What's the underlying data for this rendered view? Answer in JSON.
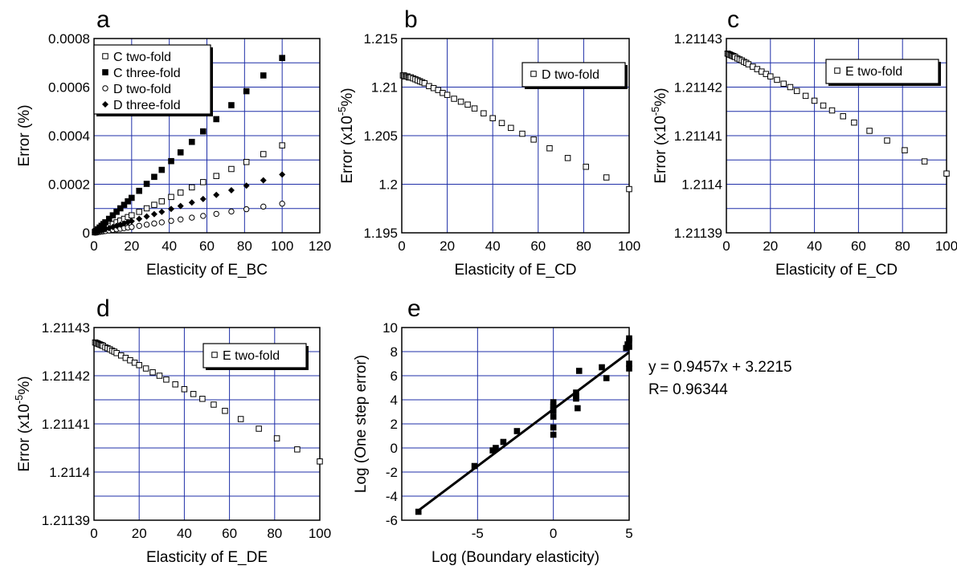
{
  "chart_data": [
    {
      "panel_id": "a",
      "type": "scatter",
      "panel_letter": "a",
      "xlabel": "Elasticity of E_BC",
      "ylabel": "Error (%)",
      "xlim": [
        0,
        120
      ],
      "ylim": [
        0,
        0.0008
      ],
      "x_ticks": [
        "0",
        "20",
        "40",
        "60",
        "80",
        "100",
        "120"
      ],
      "y_ticks": [
        "0",
        "0.0002",
        "0.0004",
        "0.0006",
        "0.0008"
      ],
      "grid": "on",
      "legend_position": "top-left",
      "series": [
        {
          "name": "C two-fold",
          "marker": "open-square",
          "x": [
            0.5,
            1,
            2,
            3,
            4,
            5,
            6,
            8,
            10,
            12,
            14,
            16,
            18,
            20,
            24,
            28,
            32,
            36,
            41,
            46,
            52,
            58,
            65,
            73,
            81,
            90,
            100
          ],
          "y": [
            1.8e-06,
            3.6e-06,
            7.2e-06,
            1.08e-05,
            1.44e-05,
            1.8e-05,
            2.16e-05,
            2.88e-05,
            3.6e-05,
            4.32e-05,
            5.04e-05,
            5.76e-05,
            6.48e-05,
            7.2e-05,
            8.64e-05,
            0.0001008,
            0.0001152,
            0.0001296,
            0.0001476,
            0.0001656,
            0.0001872,
            0.0002088,
            0.000234,
            0.0002628,
            0.0002916,
            0.000324,
            0.00036
          ]
        },
        {
          "name": "C three-fold",
          "marker": "filled-square",
          "x": [
            0.5,
            1,
            2,
            3,
            4,
            5,
            6,
            8,
            10,
            12,
            14,
            16,
            18,
            20,
            24,
            28,
            32,
            36,
            41,
            46,
            52,
            58,
            65,
            73,
            81,
            90,
            100
          ],
          "y": [
            3.6e-06,
            7.2e-06,
            1.44e-05,
            2.16e-05,
            2.88e-05,
            3.6e-05,
            4.32e-05,
            5.76e-05,
            7.2e-05,
            8.64e-05,
            0.0001008,
            0.0001152,
            0.0001296,
            0.000144,
            0.0001728,
            0.0002016,
            0.0002304,
            0.0002592,
            0.0002952,
            0.0003312,
            0.0003744,
            0.0004176,
            0.000468,
            0.0005256,
            0.0005832,
            0.000648,
            0.00072
          ]
        },
        {
          "name": "D two-fold",
          "marker": "open-circle",
          "x": [
            0.5,
            1,
            2,
            3,
            4,
            5,
            6,
            8,
            10,
            12,
            14,
            16,
            18,
            20,
            24,
            28,
            32,
            36,
            41,
            46,
            52,
            58,
            65,
            73,
            81,
            90,
            100
          ],
          "y": [
            6e-07,
            1.2e-06,
            2.4e-06,
            3.6e-06,
            4.8e-06,
            6e-06,
            7.2e-06,
            9.6e-06,
            1.2e-05,
            1.44e-05,
            1.68e-05,
            1.92e-05,
            2.16e-05,
            2.4e-05,
            2.88e-05,
            3.36e-05,
            3.84e-05,
            4.32e-05,
            4.92e-05,
            5.52e-05,
            6.24e-05,
            6.96e-05,
            7.8e-05,
            8.76e-05,
            9.72e-05,
            0.000108,
            0.00012
          ]
        },
        {
          "name": "D three-fold",
          "marker": "filled-diamond",
          "x": [
            0.5,
            1,
            2,
            3,
            4,
            5,
            6,
            8,
            10,
            12,
            14,
            16,
            18,
            20,
            24,
            28,
            32,
            36,
            41,
            46,
            52,
            58,
            65,
            73,
            81,
            90,
            100
          ],
          "y": [
            1.2e-06,
            2.4e-06,
            4.8e-06,
            7.2e-06,
            9.6e-06,
            1.2e-05,
            1.44e-05,
            1.92e-05,
            2.4e-05,
            2.88e-05,
            3.36e-05,
            3.84e-05,
            4.32e-05,
            4.8e-05,
            5.76e-05,
            6.72e-05,
            7.68e-05,
            8.64e-05,
            9.84e-05,
            0.0001104,
            0.0001248,
            0.0001392,
            0.000156,
            0.0001752,
            0.0001944,
            0.000216,
            0.00024
          ]
        }
      ]
    },
    {
      "panel_id": "b",
      "type": "scatter",
      "panel_letter": "b",
      "xlabel": "Elasticity of E_CD",
      "ylabel_main": "Error (x10",
      "ylabel_sup": "-5",
      "ylabel_end": "%)",
      "xlim": [
        0,
        100
      ],
      "ylim": [
        1.195,
        1.215
      ],
      "x_ticks": [
        "0",
        "20",
        "40",
        "60",
        "80",
        "100"
      ],
      "y_ticks": [
        "1.195",
        "1.2",
        "1.205",
        "1.21",
        "1.215"
      ],
      "grid": "on",
      "legend_position": "top-right",
      "series": [
        {
          "name": "D two-fold",
          "marker": "open-square",
          "x": [
            0.5,
            1,
            1.5,
            2,
            2.5,
            3,
            3.5,
            4,
            5,
            6,
            7,
            8,
            9,
            10,
            12,
            14,
            16,
            18,
            20,
            23,
            26,
            29,
            32,
            36,
            40,
            44,
            48,
            53,
            58,
            65,
            73,
            81,
            90,
            100
          ],
          "y": [
            1.2112,
            1.2112,
            1.2111,
            1.2111,
            1.2111,
            1.211,
            1.211,
            1.211,
            1.2109,
            1.2108,
            1.2107,
            1.2106,
            1.2105,
            1.2104,
            1.2101,
            1.2099,
            1.2097,
            1.2094,
            1.2092,
            1.2088,
            1.2085,
            1.2082,
            1.2078,
            1.2073,
            1.2068,
            1.2063,
            1.2058,
            1.2052,
            1.2046,
            1.2037,
            1.2027,
            1.2018,
            1.2007,
            1.1995
          ]
        }
      ]
    },
    {
      "panel_id": "c",
      "type": "scatter",
      "panel_letter": "c",
      "xlabel": "Elasticity of E_CD",
      "ylabel_main": "Error (x10",
      "ylabel_sup": "-5",
      "ylabel_end": "%)",
      "xlim": [
        0,
        100
      ],
      "ylim": [
        1.21139,
        1.21143
      ],
      "x_ticks": [
        "0",
        "20",
        "40",
        "60",
        "80",
        "100"
      ],
      "y_ticks": [
        "1.21139",
        "1.2114",
        "1.21141",
        "1.21142",
        "1.21143"
      ],
      "grid": "on",
      "legend_position": "top-right",
      "series": [
        {
          "name": "E two-fold",
          "marker": "open-square",
          "x": [
            0.5,
            1,
            1.5,
            2,
            2.5,
            3,
            3.5,
            4,
            5,
            6,
            7,
            8,
            9,
            10,
            12,
            14,
            16,
            18,
            20,
            23,
            26,
            29,
            32,
            36,
            40,
            44,
            48,
            53,
            58,
            65,
            73,
            81,
            90,
            100
          ],
          "y": [
            1.2114269,
            1.2114268,
            1.2114267,
            1.2114266,
            1.2114265,
            1.2114264,
            1.2114263,
            1.2114262,
            1.2114259,
            1.2114257,
            1.2114255,
            1.2114252,
            1.211425,
            1.2114247,
            1.2114242,
            1.2114237,
            1.2114232,
            1.2114227,
            1.2114222,
            1.2114215,
            1.2114207,
            1.21142,
            1.2114192,
            1.2114182,
            1.2114172,
            1.2114162,
            1.2114152,
            1.211414,
            1.2114127,
            1.211411,
            1.211409,
            1.211407,
            1.2114047,
            1.2114022
          ]
        }
      ]
    },
    {
      "panel_id": "d",
      "type": "scatter",
      "panel_letter": "d",
      "xlabel": "Elasticity of E_DE",
      "ylabel_main": "Error (x10",
      "ylabel_sup": "-5",
      "ylabel_end": "%)",
      "xlim": [
        0,
        100
      ],
      "ylim": [
        1.21139,
        1.21143
      ],
      "x_ticks": [
        "0",
        "20",
        "40",
        "60",
        "80",
        "100"
      ],
      "y_ticks": [
        "1.21139",
        "1.2114",
        "1.21141",
        "1.21142",
        "1.21143"
      ],
      "grid": "on",
      "legend_position": "top-right",
      "series": [
        {
          "name": "E two-fold",
          "marker": "open-square",
          "x": [
            0.5,
            1,
            1.5,
            2,
            2.5,
            3,
            3.5,
            4,
            5,
            6,
            7,
            8,
            9,
            10,
            12,
            14,
            16,
            18,
            20,
            23,
            26,
            29,
            32,
            36,
            40,
            44,
            48,
            53,
            58,
            65,
            73,
            81,
            90,
            100
          ],
          "y": [
            1.2114269,
            1.2114268,
            1.2114267,
            1.2114266,
            1.2114265,
            1.2114264,
            1.2114263,
            1.2114262,
            1.2114259,
            1.2114257,
            1.2114255,
            1.2114252,
            1.211425,
            1.2114247,
            1.2114242,
            1.2114237,
            1.2114232,
            1.2114227,
            1.2114222,
            1.2114215,
            1.2114207,
            1.21142,
            1.2114192,
            1.2114182,
            1.2114172,
            1.2114162,
            1.2114152,
            1.211414,
            1.2114127,
            1.211411,
            1.211409,
            1.211407,
            1.2114047,
            1.2114022
          ]
        }
      ]
    },
    {
      "panel_id": "e",
      "type": "scatter",
      "panel_letter": "e",
      "xlabel": "Log (Boundary elasticity)",
      "ylabel": "Log (One step error)",
      "xlim": [
        -10,
        5
      ],
      "ylim": [
        -6,
        10
      ],
      "x_ticks": [
        "-5",
        "0",
        "5"
      ],
      "x_tick_values": [
        -5,
        0,
        5
      ],
      "y_ticks": [
        "-6",
        "-4",
        "-2",
        "0",
        "2",
        "4",
        "6",
        "8",
        "10"
      ],
      "grid": "on",
      "fit_line": {
        "slope": 0.9457,
        "intercept": 3.2215,
        "x_range": [
          -9,
          5
        ]
      },
      "annotation": [
        "y = 0.9457x + 3.2215",
        "R= 0.96344"
      ],
      "series": [
        {
          "marker": "filled-square",
          "x": [
            -8.9,
            -5.2,
            -4.0,
            -3.8,
            -3.3,
            -2.4,
            0,
            0,
            0,
            0,
            0,
            0,
            0,
            0,
            1.5,
            1.5,
            1.5,
            1.6,
            1.7,
            3.2,
            3.5,
            4.8,
            4.9,
            5,
            5,
            5,
            5,
            5
          ],
          "y": [
            -5.3,
            -1.5,
            -0.2,
            0.0,
            0.5,
            1.4,
            1.1,
            1.7,
            2.6,
            3.2,
            3.4,
            3.8,
            3.1,
            3.6,
            4.1,
            4.3,
            4.6,
            3.3,
            6.4,
            6.7,
            5.8,
            8.3,
            8.6,
            8.9,
            9.1,
            8.4,
            7.0,
            6.6
          ]
        }
      ]
    }
  ]
}
